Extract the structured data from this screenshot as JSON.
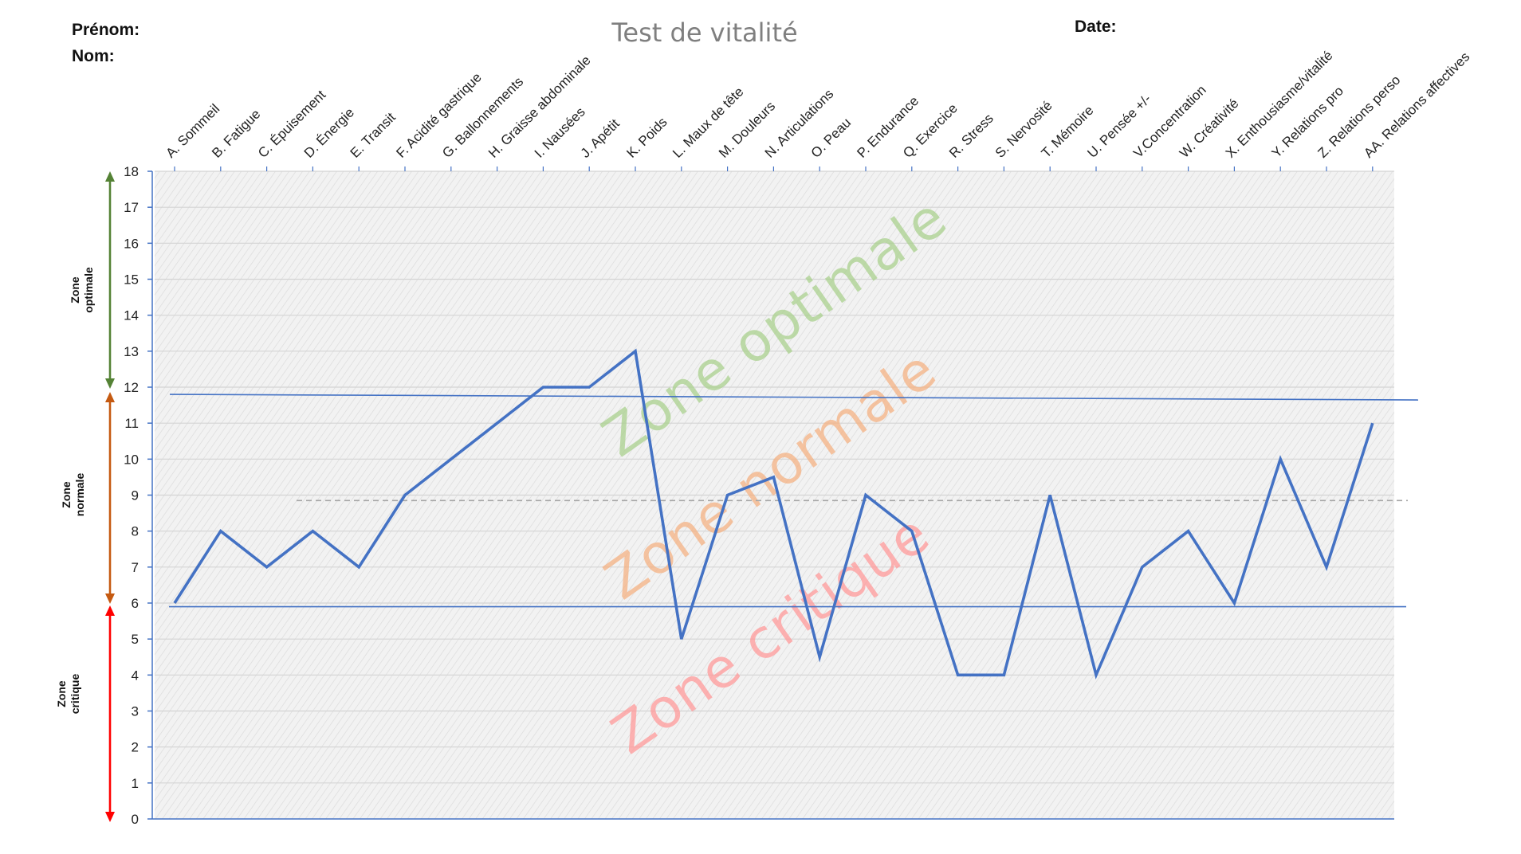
{
  "header": {
    "prenom_label": "Prénom:",
    "nom_label": "Nom:",
    "date_label": "Date:"
  },
  "zones": {
    "optimal_label_line1": "Zone",
    "optimal_label_line2": "optimale",
    "normal_label_line1": "Zone",
    "normal_label_line2": "normale",
    "critical_label_line1": "Zone",
    "critical_label_line2": "critique",
    "optimal_watermark": "Zone optimale",
    "normal_watermark": "Zone normale",
    "critical_watermark": "Zone critique",
    "colors": {
      "optimal": "#548235",
      "normal": "#C55A11",
      "critical": "#FF0000",
      "optimal_watermark": "#A9D08E",
      "normal_watermark": "#F4B183",
      "critical_watermark": "#FF9999"
    }
  },
  "chart_data": {
    "type": "line",
    "title": "Test de vitalité",
    "xlabel": "",
    "ylabel": "",
    "categories": [
      "A. Sommeil",
      "B. Fatigue",
      "C. Épuisement",
      "D. Énergie",
      "E. Transit",
      "F. Acidité gastrique",
      "G. Ballonnements",
      "H. Graisse abdominale",
      "I. Nausées",
      "J. Apétit",
      "K. Poids",
      "L. Maux de tête",
      "M. Douleurs",
      "N. Articulations",
      "O. Peau",
      "P. Endurance",
      "Q. Exercice",
      "R. Stress",
      "S. Nervosité",
      "T. Mémoire",
      "U. Pensée +/-",
      "V.Concentration",
      "W. Créativité",
      "X. Enthousiasme/vitalité",
      "Y. Relations pro",
      "Z. Relations perso",
      "AA. Relations affectives"
    ],
    "series": [
      {
        "values": [
          6,
          8,
          7,
          8,
          7,
          9,
          10,
          11,
          12,
          12,
          13,
          5,
          9,
          9.5,
          4.5,
          9,
          8,
          4,
          4,
          9,
          4,
          7,
          8,
          6,
          10,
          7,
          11
        ],
        "color": "#4472C4"
      }
    ],
    "ylim": [
      0,
      18
    ],
    "yticks": [
      0,
      1,
      2,
      3,
      4,
      5,
      6,
      7,
      8,
      9,
      10,
      11,
      12,
      13,
      14,
      15,
      16,
      17,
      18
    ],
    "reference_lines": {
      "upper_threshold": 11.8,
      "lower_threshold": 5.9,
      "dashed_average": 8.85
    },
    "zone_ranges": {
      "optimal": [
        12,
        18
      ],
      "normal": [
        6,
        12
      ],
      "critical": [
        0,
        6
      ]
    },
    "grid": true,
    "legend": "none",
    "plot_background": "hatched light gray"
  }
}
